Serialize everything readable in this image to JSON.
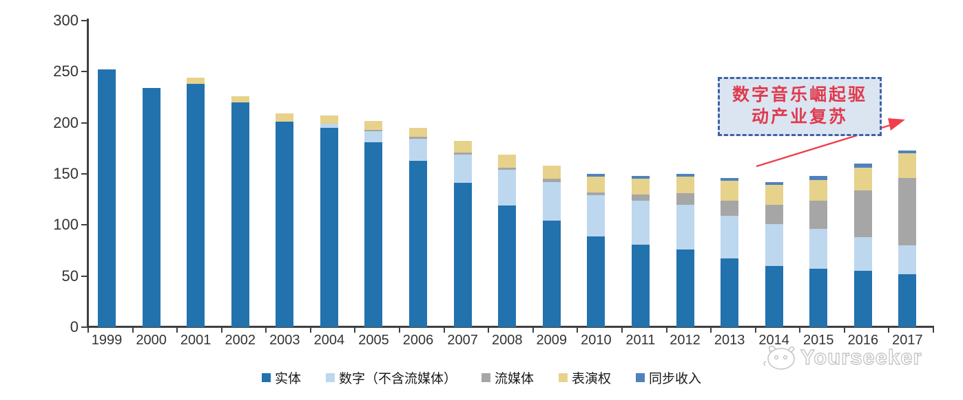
{
  "chart_data": {
    "type": "bar",
    "stacked": true,
    "title": "",
    "xlabel": "",
    "ylabel": "",
    "ylim": [
      0,
      300
    ],
    "yticks": [
      0,
      50,
      100,
      150,
      200,
      250,
      300
    ],
    "grid": false,
    "legend_position": "bottom",
    "categories": [
      "1999",
      "2000",
      "2001",
      "2002",
      "2003",
      "2004",
      "2005",
      "2006",
      "2007",
      "2008",
      "2009",
      "2010",
      "2011",
      "2012",
      "2013",
      "2014",
      "2015",
      "2016",
      "2017"
    ],
    "series": [
      {
        "name": "实体",
        "color": "#2272ae",
        "values": [
          252,
          234,
          238,
          220,
          201,
          195,
          181,
          163,
          141,
          119,
          104,
          89,
          81,
          76,
          67,
          60,
          57,
          55,
          52
        ]
      },
      {
        "name": "数字（不含流媒体）",
        "color": "#bdd7ee",
        "values": [
          0,
          0,
          0,
          0,
          0,
          4,
          11,
          21,
          28,
          35,
          38,
          40,
          43,
          44,
          42,
          41,
          39,
          33,
          28
        ]
      },
      {
        "name": "流媒体",
        "color": "#a6a6a6",
        "values": [
          0,
          0,
          0,
          0,
          0,
          0,
          1,
          2,
          2,
          2,
          3,
          3,
          6,
          11,
          15,
          19,
          28,
          46,
          66
        ]
      },
      {
        "name": "表演权",
        "color": "#e7d28c",
        "values": [
          0,
          0,
          6,
          6,
          8,
          8,
          9,
          9,
          11,
          13,
          13,
          15,
          15,
          16,
          19,
          19,
          20,
          22,
          24
        ]
      },
      {
        "name": "同步收入",
        "color": "#4f81bd",
        "values": [
          0,
          0,
          0,
          0,
          0,
          0,
          0,
          0,
          0,
          0,
          0,
          3,
          3,
          3,
          3,
          3,
          4,
          4,
          3
        ]
      }
    ]
  },
  "annotation": {
    "line1": "数字音乐崛起驱",
    "line2": "动产业复苏",
    "box_fill": "#dbe5f2",
    "border_color": "#3f61a5",
    "text_color": "#e03a4e",
    "arrow_color": "#f03e4d"
  },
  "watermark": {
    "text": "Yourseeker",
    "color": "#c6c6c6"
  }
}
